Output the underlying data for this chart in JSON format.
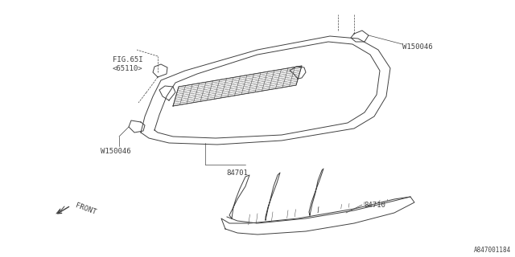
{
  "background_color": "#ffffff",
  "line_color": "#404040",
  "part_number_84701": "84701",
  "part_number_84710": "84710",
  "part_number_W150046_top": "W150046",
  "part_number_W150046_bottom": "W150046",
  "fig_label": "FIG.65I\n<65110>",
  "front_label": "FRONT",
  "catalog_number": "A847001184",
  "lw": 0.7
}
